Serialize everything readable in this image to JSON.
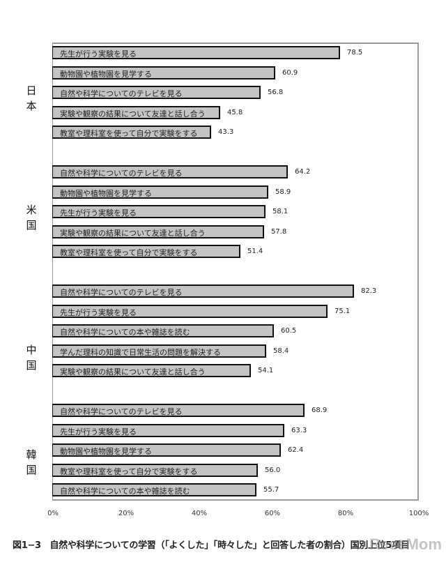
{
  "chart_data": {
    "type": "bar",
    "orientation": "horizontal",
    "title": "図1−3　自然や科学についての学習（「よくした」「時々した」と回答した者の割合）国別上位5項目",
    "xlabel": "",
    "ylabel": "",
    "xlim": [
      0,
      100
    ],
    "x_ticks": [
      "0%",
      "20%",
      "40%",
      "60%",
      "80%",
      "100%"
    ],
    "grid": false,
    "legend": null,
    "groups": [
      {
        "country": "日本",
        "items": [
          {
            "label": "先生が行う実験を見る",
            "value": 78.5
          },
          {
            "label": "動物園や植物園を見学する",
            "value": 60.9
          },
          {
            "label": "自然や科学についてのテレビを見る",
            "value": 56.8
          },
          {
            "label": "実験や観察の結果について友達と話し合う",
            "value": 45.8
          },
          {
            "label": "教室や理科室を使って自分で実験をする",
            "value": 43.3
          }
        ]
      },
      {
        "country": "米国",
        "items": [
          {
            "label": "自然や科学についてのテレビを見る",
            "value": 64.2
          },
          {
            "label": "動物園や植物園を見学する",
            "value": 58.9
          },
          {
            "label": "先生が行う実験を見る",
            "value": 58.1
          },
          {
            "label": "実験や観察の結果について友達と話し合う",
            "value": 57.8
          },
          {
            "label": "教室や理科室を使って自分で実験をする",
            "value": 51.4
          }
        ]
      },
      {
        "country": "中国",
        "items": [
          {
            "label": "自然や科学についてのテレビを見る",
            "value": 82.3
          },
          {
            "label": "先生が行う実験を見る",
            "value": 75.1
          },
          {
            "label": "自然や科学についての本や雑誌を読む",
            "value": 60.5
          },
          {
            "label": "学んだ理科の知識で日常生活の問題を解決する",
            "value": 58.4
          },
          {
            "label": "実験や観察の結果について友達と話し合う",
            "value": 54.1
          }
        ]
      },
      {
        "country": "韓国",
        "items": [
          {
            "label": "自然や科学についてのテレビを見る",
            "value": 68.9
          },
          {
            "label": "先生が行う実験を見る",
            "value": 63.3
          },
          {
            "label": "動物園や植物園を見学する",
            "value": 62.4
          },
          {
            "label": "教室や理科室を使って自分で実験をする",
            "value": 56.0
          },
          {
            "label": "自然や科学についての本や雑誌を読む",
            "value": 55.7
          }
        ]
      }
    ]
  },
  "countries": [
    {
      "c1": "日",
      "c2": "本"
    },
    {
      "c1": "米",
      "c2": "国"
    },
    {
      "c1": "中",
      "c2": "国"
    },
    {
      "c1": "韓",
      "c2": "国"
    }
  ],
  "caption": "図1−3　自然や科学についての学習（「よくした」「時々した」と回答した者の割合）国別上位5項目",
  "watermark": "ReseMom",
  "colors": {
    "bar_fill": "#c4c4c4",
    "bar_border": "#111111",
    "frame": "#9a9a9a"
  }
}
